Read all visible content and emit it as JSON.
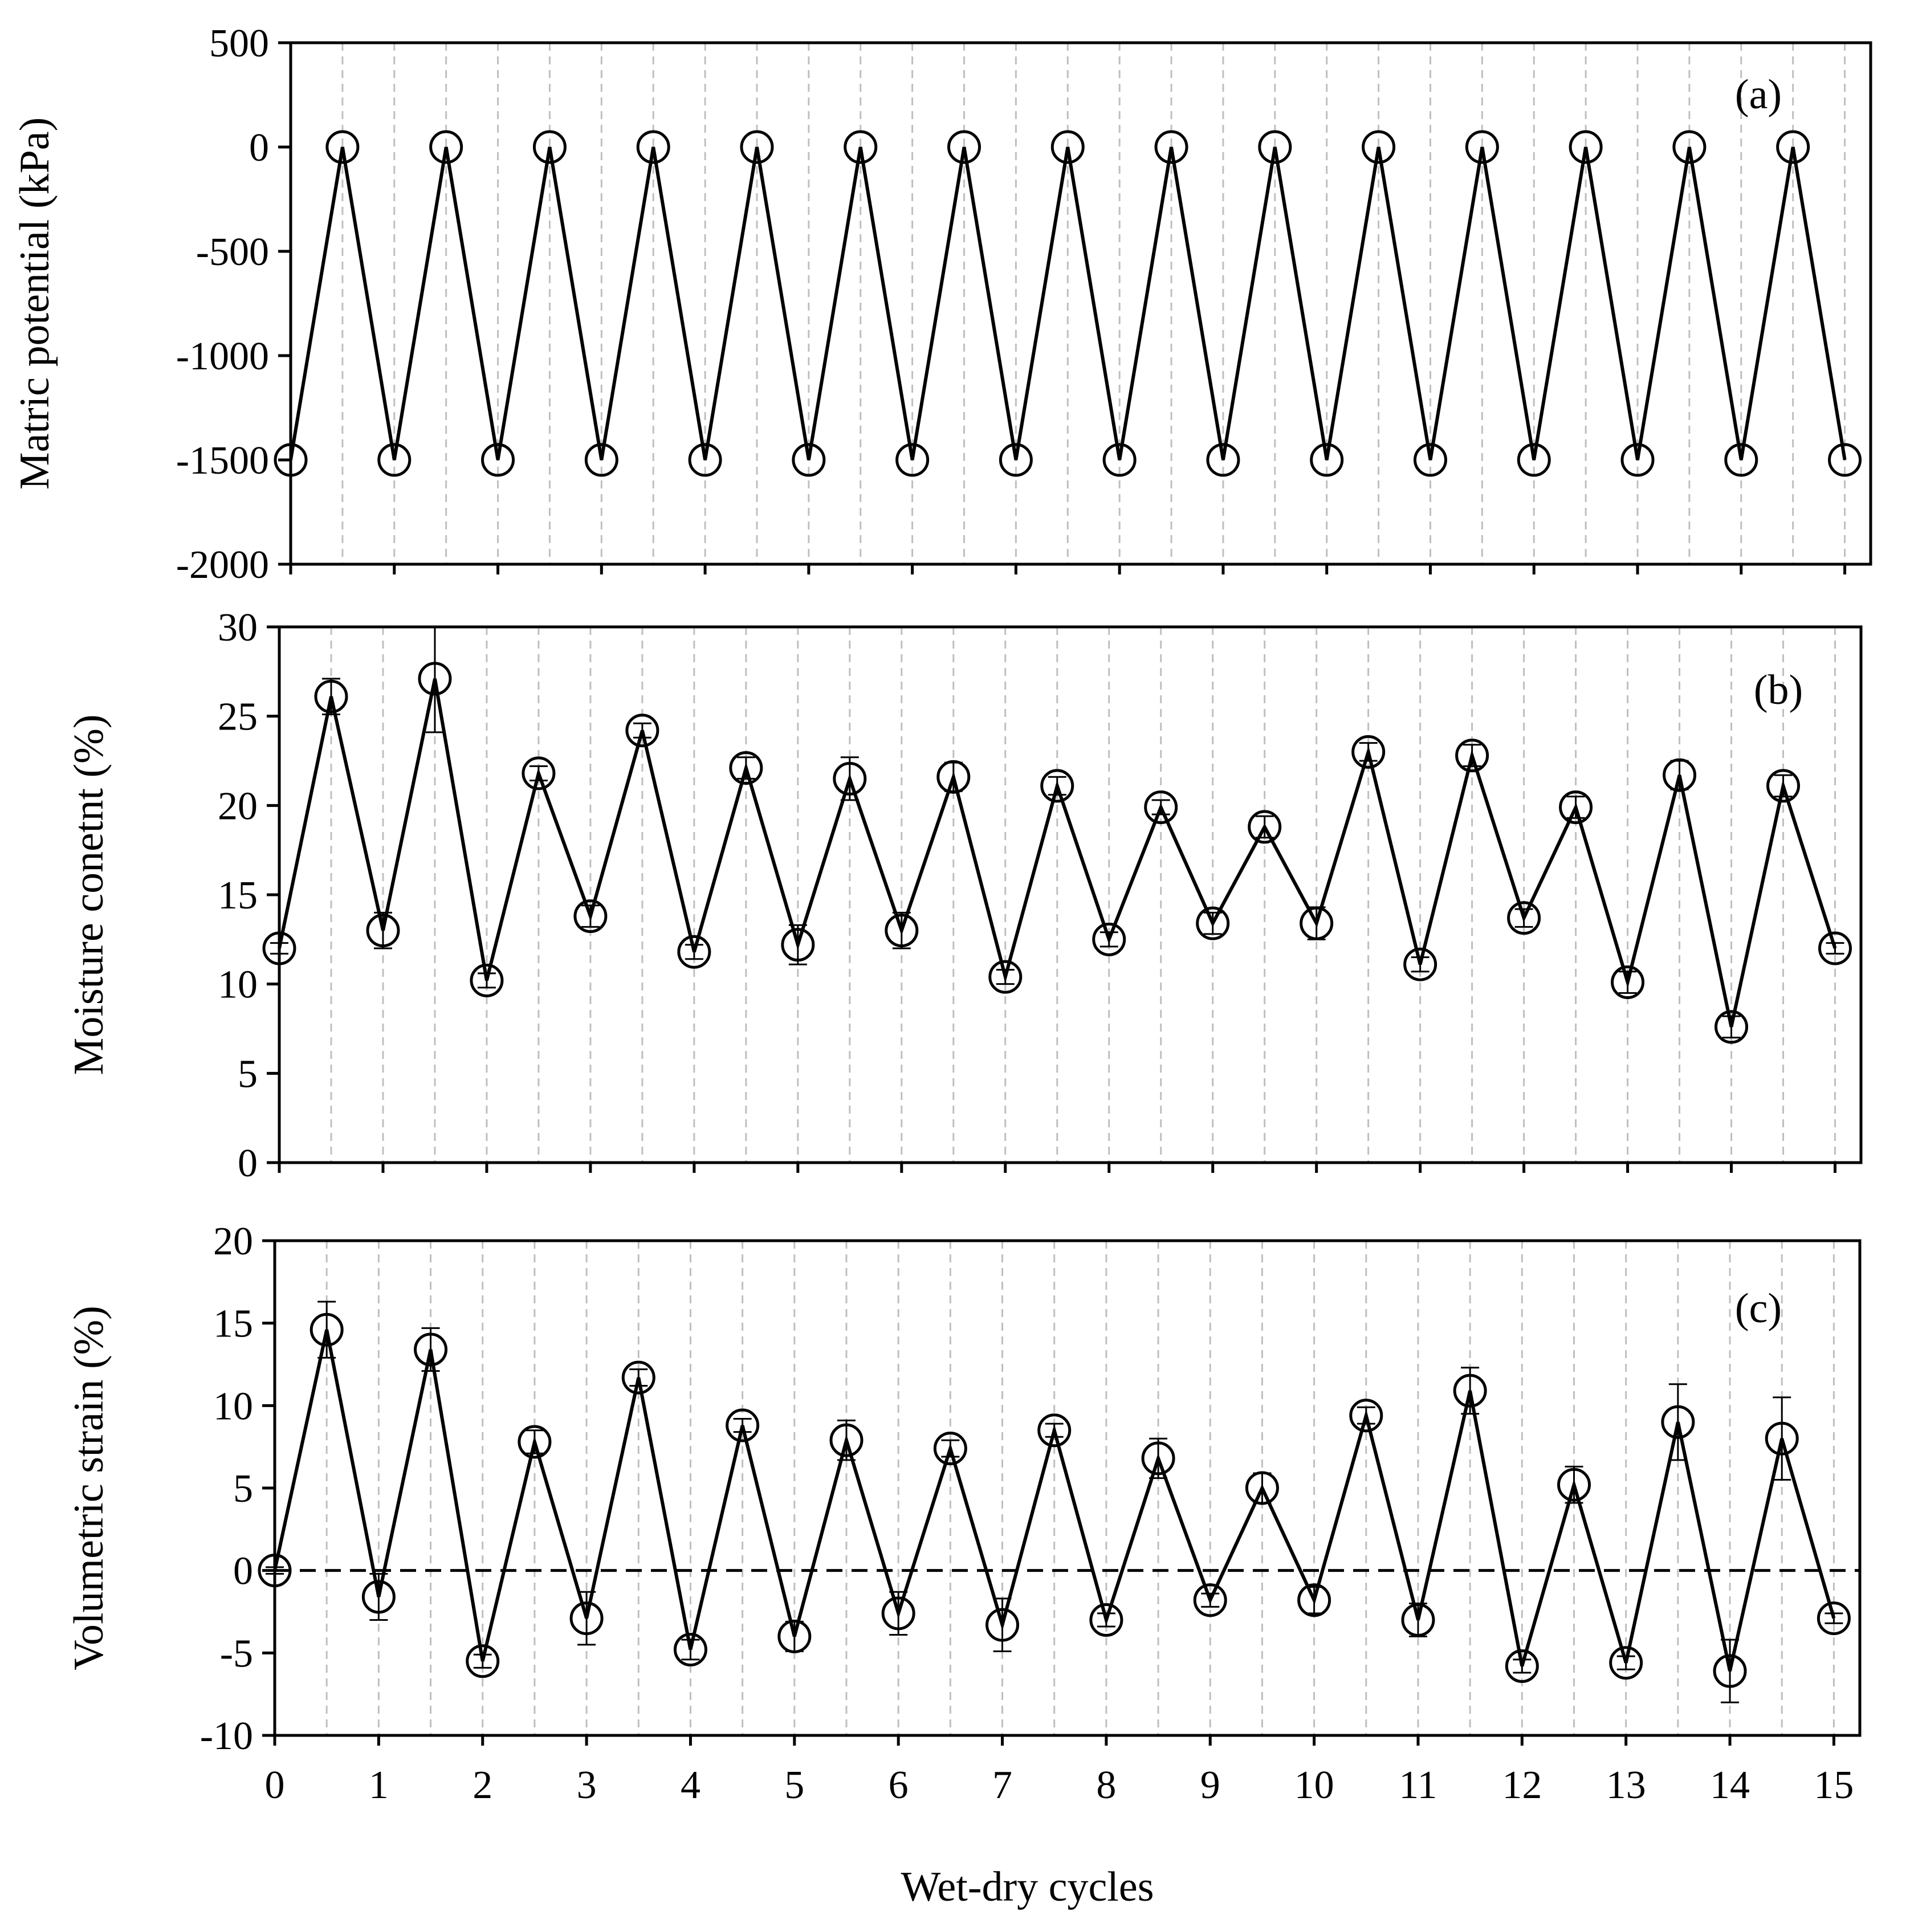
{
  "x_axis_title": "Wet-dry cycles",
  "x_tick_labels": [
    "0",
    "1",
    "2",
    "3",
    "4",
    "5",
    "6",
    "7",
    "8",
    "9",
    "10",
    "11",
    "12",
    "13",
    "14",
    "15"
  ],
  "colors": {
    "line": "#000000",
    "grid": "#bfbfbf",
    "background": "#ffffff"
  },
  "chart_data": [
    {
      "type": "line",
      "panel_label": "(a)",
      "ylabel": "Matric potential (kPa)",
      "ylim": [
        -2000,
        500
      ],
      "yticks": [
        500,
        0,
        -500,
        -1000,
        -1500,
        -2000
      ],
      "x": [
        0,
        1,
        2,
        3,
        4,
        5,
        6,
        7,
        8,
        9,
        10,
        11,
        12,
        13,
        14,
        15,
        16,
        17,
        18,
        19,
        20,
        21,
        22,
        23,
        24,
        25,
        26,
        27,
        28,
        29,
        30
      ],
      "values": [
        -1500,
        0,
        -1500,
        0,
        -1500,
        0,
        -1500,
        0,
        -1500,
        0,
        -1500,
        0,
        -1500,
        0,
        -1500,
        0,
        -1500,
        0,
        -1500,
        0,
        -1500,
        0,
        -1500,
        0,
        -1500,
        0,
        -1500,
        0,
        -1500,
        0,
        -1500
      ],
      "errors": [],
      "marker": "open-circle",
      "vertical_grid": "dashed"
    },
    {
      "type": "line",
      "panel_label": "(b)",
      "ylabel": "Moisture conetnt (%)",
      "ylim": [
        0,
        30
      ],
      "yticks": [
        30,
        25,
        20,
        15,
        10,
        5,
        0
      ],
      "x": [
        0,
        1,
        2,
        3,
        4,
        5,
        6,
        7,
        8,
        9,
        10,
        11,
        12,
        13,
        14,
        15,
        16,
        17,
        18,
        19,
        20,
        21,
        22,
        23,
        24,
        25,
        26,
        27,
        28,
        29,
        30
      ],
      "values": [
        12.0,
        26.1,
        13.0,
        27.1,
        10.2,
        21.8,
        13.8,
        24.2,
        11.8,
        22.1,
        12.2,
        21.5,
        13.0,
        21.6,
        10.4,
        21.1,
        12.5,
        19.9,
        13.4,
        18.8,
        13.4,
        23.0,
        11.1,
        22.8,
        13.7,
        19.9,
        10.1,
        21.7,
        7.6,
        21.1,
        12.0
      ],
      "errors": [
        0.3,
        1.0,
        1.0,
        3.0,
        0.4,
        0.4,
        0.6,
        0.4,
        0.4,
        0.6,
        1.1,
        1.2,
        1.0,
        0.8,
        0.4,
        0.5,
        0.4,
        0.4,
        0.6,
        0.6,
        0.9,
        0.5,
        0.4,
        0.6,
        0.5,
        0.6,
        0.6,
        0.8,
        0.6,
        0.6,
        0.3
      ],
      "marker": "open-circle",
      "vertical_grid": "dashed"
    },
    {
      "type": "line",
      "panel_label": "(c)",
      "ylabel": "Volumetric strain (%)",
      "ylim": [
        -10,
        20
      ],
      "yticks": [
        20,
        15,
        10,
        5,
        0,
        -5,
        -10
      ],
      "x": [
        0,
        1,
        2,
        3,
        4,
        5,
        6,
        7,
        8,
        9,
        10,
        11,
        12,
        13,
        14,
        15,
        16,
        17,
        18,
        19,
        20,
        21,
        22,
        23,
        24,
        25,
        26,
        27,
        28,
        29,
        30
      ],
      "values": [
        0,
        14.6,
        -1.6,
        13.4,
        -5.5,
        7.8,
        -2.9,
        11.7,
        -4.8,
        8.8,
        -4.0,
        7.9,
        -2.6,
        7.4,
        -3.3,
        8.5,
        -3.0,
        6.8,
        -1.8,
        5.0,
        -1.8,
        9.4,
        -3.0,
        10.9,
        -5.8,
        5.2,
        -5.6,
        9.0,
        -6.1,
        8.0,
        -2.9
      ],
      "errors": [
        0.2,
        1.7,
        1.4,
        1.3,
        0.4,
        0.7,
        1.6,
        0.5,
        0.6,
        0.4,
        0.9,
        1.2,
        1.3,
        0.5,
        1.6,
        0.4,
        0.4,
        1.2,
        0.4,
        0.9,
        0.8,
        0.5,
        1.0,
        1.4,
        0.4,
        1.1,
        0.4,
        2.3,
        1.9,
        2.5,
        0.3
      ],
      "marker": "open-circle",
      "vertical_grid": "dashed",
      "reference_line": {
        "y": 0,
        "style": "dashed"
      }
    }
  ]
}
